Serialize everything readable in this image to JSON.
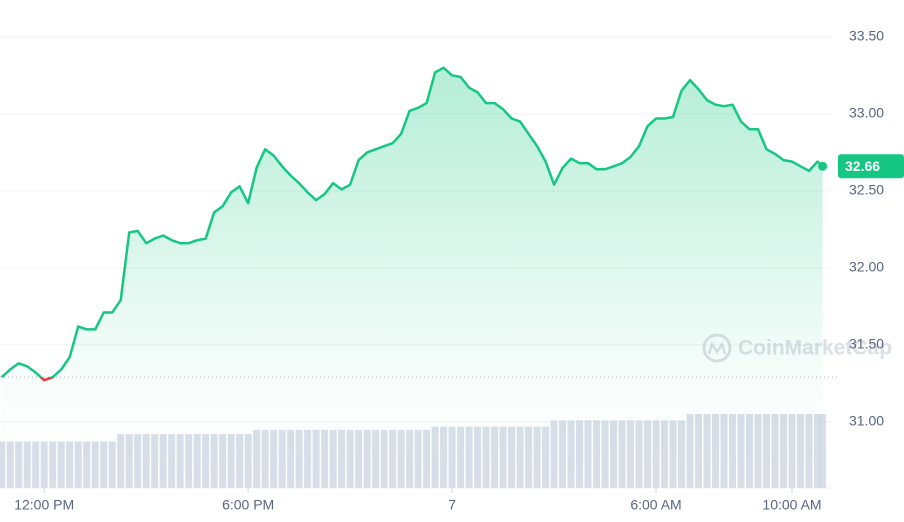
{
  "chart_data": {
    "type": "line",
    "x": [
      10.75,
      11,
      11.25,
      11.5,
      11.75,
      12,
      12.25,
      12.5,
      12.75,
      13,
      13.25,
      13.5,
      13.75,
      14,
      14.25,
      14.5,
      14.75,
      15,
      15.25,
      15.5,
      15.75,
      16,
      16.25,
      16.5,
      16.75,
      17,
      17.25,
      17.5,
      17.75,
      18,
      18.25,
      18.5,
      18.75,
      19,
      19.25,
      19.5,
      19.75,
      20,
      20.25,
      20.5,
      20.75,
      21,
      21.25,
      21.5,
      21.75,
      22,
      22.25,
      22.5,
      22.75,
      23,
      23.25,
      23.5,
      23.75,
      24,
      24.25,
      24.5,
      24.75,
      25,
      25.25,
      25.5,
      25.75,
      26,
      26.25,
      26.5,
      26.75,
      27,
      27.25,
      27.5,
      27.75,
      28,
      28.25,
      28.5,
      28.75,
      29,
      29.25,
      29.5,
      29.75,
      30,
      30.25,
      30.5,
      30.75,
      31,
      31.25,
      31.5,
      31.75,
      32,
      32.25,
      32.5,
      32.75,
      33,
      33.25,
      33.5,
      33.75,
      34,
      34.25,
      34.5,
      34.75,
      34.9
    ],
    "values": [
      31.29,
      31.34,
      31.38,
      31.36,
      31.32,
      31.27,
      31.29,
      31.34,
      31.42,
      31.62,
      31.6,
      31.6,
      31.71,
      31.71,
      31.79,
      32.23,
      32.24,
      32.16,
      32.19,
      32.21,
      32.18,
      32.16,
      32.16,
      32.18,
      32.19,
      32.36,
      32.4,
      32.49,
      32.53,
      32.42,
      32.65,
      32.77,
      32.73,
      32.66,
      32.6,
      32.55,
      32.49,
      32.44,
      32.48,
      32.55,
      32.51,
      32.54,
      32.7,
      32.75,
      32.77,
      32.79,
      32.81,
      32.87,
      33.02,
      33.04,
      33.07,
      33.27,
      33.3,
      33.25,
      33.24,
      33.17,
      33.14,
      33.07,
      33.07,
      33.03,
      32.97,
      32.95,
      32.87,
      32.79,
      32.69,
      32.54,
      32.65,
      32.71,
      32.68,
      32.68,
      32.64,
      32.64,
      32.66,
      32.68,
      32.72,
      32.79,
      32.92,
      32.97,
      32.97,
      32.98,
      33.15,
      33.22,
      33.16,
      33.09,
      33.06,
      33.05,
      33.06,
      32.95,
      32.9,
      32.9,
      32.77,
      32.74,
      32.7,
      32.69,
      32.66,
      32.63,
      32.69,
      32.66
    ],
    "volume": [
      44,
      44,
      44,
      44,
      44,
      44,
      44,
      44,
      44,
      44,
      44,
      44,
      44,
      44,
      51,
      51,
      51,
      51,
      51,
      51,
      51,
      51,
      51,
      51,
      51,
      51,
      51,
      51,
      51,
      51,
      55,
      55,
      55,
      55,
      55,
      55,
      55,
      55,
      55,
      55,
      55,
      55,
      55,
      55,
      55,
      55,
      55,
      55,
      55,
      55,
      55,
      58,
      58,
      58,
      58,
      58,
      58,
      58,
      58,
      58,
      58,
      58,
      58,
      58,
      58,
      64,
      64,
      64,
      64,
      64,
      64,
      64,
      64,
      64,
      64,
      64,
      64,
      64,
      64,
      64,
      64,
      70,
      70,
      70,
      70,
      70,
      70,
      70,
      70,
      70,
      70,
      70,
      70,
      70,
      70,
      70,
      70,
      70
    ],
    "color": "#16c784",
    "down_color": "#ea3943",
    "volume_color": "#cfd6e4",
    "baseline": 31.29,
    "xlim": [
      10.7,
      34.9
    ],
    "xticks": [
      {
        "value": 12,
        "label": "12:00 PM"
      },
      {
        "value": 18,
        "label": "6:00 PM"
      },
      {
        "value": 24,
        "label": "7"
      },
      {
        "value": 30,
        "label": "6:00 AM"
      },
      {
        "value": 34,
        "label": "10:00 AM"
      }
    ],
    "ylim": [
      30.57,
      33.74
    ],
    "yticks": [
      {
        "value": 31,
        "label": "31.00"
      },
      {
        "value": 31.5,
        "label": "31.50"
      },
      {
        "value": 32,
        "label": "32.00"
      },
      {
        "value": 32.5,
        "label": "32.50"
      },
      {
        "value": 33,
        "label": "33.00"
      },
      {
        "value": 33.5,
        "label": "33.50"
      }
    ],
    "grid": true,
    "watermark": "CoinMarketCap"
  }
}
